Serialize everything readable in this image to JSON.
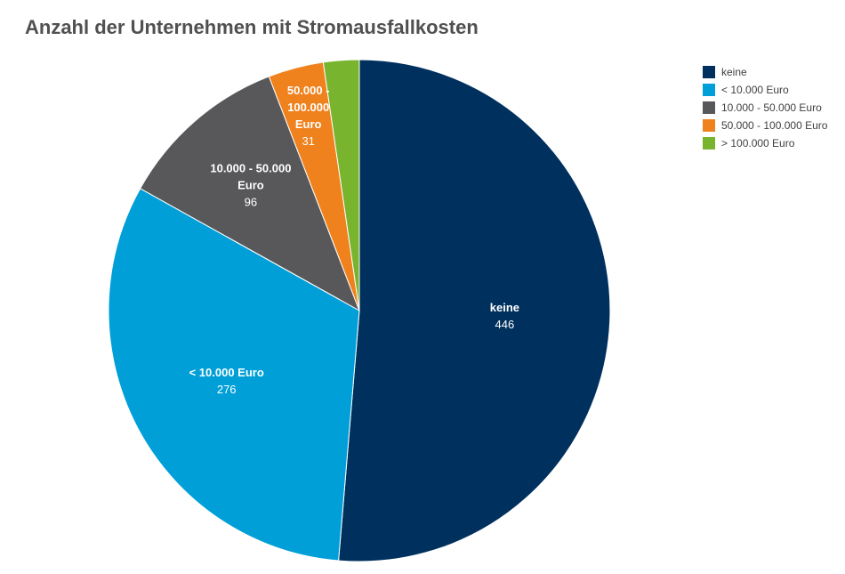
{
  "chart_data": {
    "type": "pie",
    "title": "Anzahl der Unternehmen mit Stromausfallkosten",
    "legend_position": "top-right",
    "slices": [
      {
        "label": "keine",
        "value": 446,
        "color": "#00305E",
        "label_lines": [
          "keine"
        ]
      },
      {
        "label": "< 10.000 Euro",
        "value": 276,
        "color": "#009FD8",
        "label_lines": [
          "< 10.000 Euro"
        ]
      },
      {
        "label": "10.000 - 50.000 Euro",
        "value": 96,
        "color": "#58585A",
        "label_lines": [
          "10.000 - 50.000",
          "Euro"
        ]
      },
      {
        "label": "50.000 - 100.000 Euro",
        "value": 31,
        "color": "#F0821E",
        "label_lines": [
          "50.000 -",
          "100.000",
          "Euro"
        ]
      },
      {
        "label": "> 100.000 Euro",
        "value": 20,
        "color": "#78B42D",
        "label_lines": []
      }
    ]
  }
}
